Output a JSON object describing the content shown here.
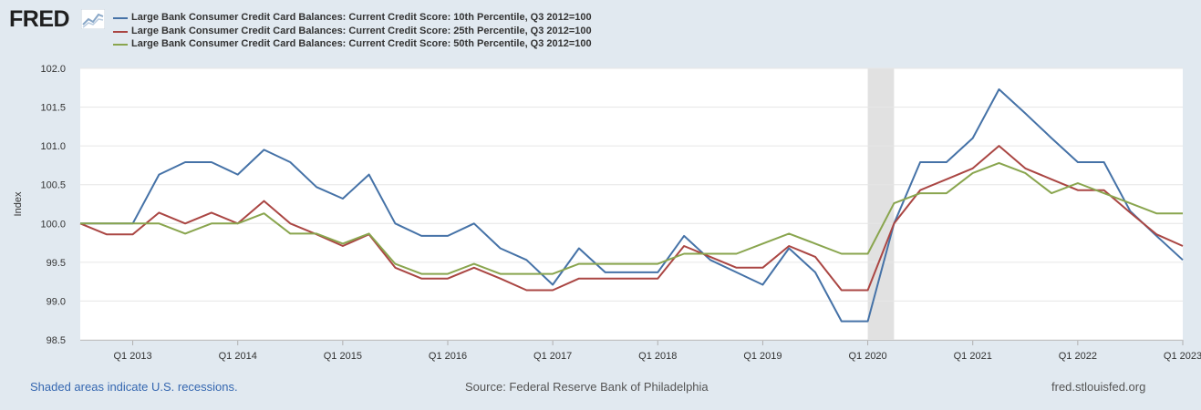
{
  "brand": {
    "logo_text": "FRED"
  },
  "legend_position": "top-left",
  "chart_data": {
    "type": "line",
    "x": [
      "2012-Q3",
      "2012-Q4",
      "2013-Q1",
      "2013-Q2",
      "2013-Q3",
      "2013-Q4",
      "2014-Q1",
      "2014-Q2",
      "2014-Q3",
      "2014-Q4",
      "2015-Q1",
      "2015-Q2",
      "2015-Q3",
      "2015-Q4",
      "2016-Q1",
      "2016-Q2",
      "2016-Q3",
      "2016-Q4",
      "2017-Q1",
      "2017-Q2",
      "2017-Q3",
      "2017-Q4",
      "2018-Q1",
      "2018-Q2",
      "2018-Q3",
      "2018-Q4",
      "2019-Q1",
      "2019-Q2",
      "2019-Q3",
      "2019-Q4",
      "2020-Q1",
      "2020-Q2",
      "2020-Q3",
      "2020-Q4",
      "2021-Q1",
      "2021-Q2",
      "2021-Q3",
      "2021-Q4",
      "2022-Q1",
      "2022-Q2",
      "2022-Q3",
      "2022-Q4",
      "2023-Q1"
    ],
    "series": [
      {
        "name": "Large Bank Consumer Credit Card Balances: Current Credit Score: 10th Percentile, Q3 2012=100",
        "color": "#4572a7",
        "values": [
          100.0,
          100.0,
          100.0,
          100.63,
          100.79,
          100.79,
          100.63,
          100.95,
          100.79,
          100.47,
          100.32,
          100.63,
          100.0,
          99.84,
          99.84,
          100.0,
          99.68,
          99.53,
          99.21,
          99.68,
          99.37,
          99.37,
          99.37,
          99.84,
          99.53,
          99.37,
          99.21,
          99.68,
          99.37,
          98.74,
          98.74,
          100.0,
          100.79,
          100.79,
          101.1,
          101.73,
          101.42,
          101.1,
          100.79,
          100.79,
          100.16,
          99.84,
          99.53
        ]
      },
      {
        "name": "Large Bank Consumer Credit Card Balances: Current Credit Score: 25th Percentile, Q3 2012=100",
        "color": "#aa4643",
        "values": [
          100.0,
          99.86,
          99.86,
          100.14,
          100.0,
          100.14,
          100.0,
          100.29,
          100.0,
          99.86,
          99.71,
          99.86,
          99.43,
          99.29,
          99.29,
          99.43,
          99.29,
          99.14,
          99.14,
          99.29,
          99.29,
          99.29,
          99.29,
          99.71,
          99.57,
          99.43,
          99.43,
          99.71,
          99.57,
          99.14,
          99.14,
          100.0,
          100.43,
          100.57,
          100.71,
          101.0,
          100.71,
          100.57,
          100.43,
          100.43,
          100.14,
          99.86,
          99.71
        ]
      },
      {
        "name": "Large Bank Consumer Credit Card Balances: Current Credit Score: 50th Percentile, Q3 2012=100",
        "color": "#89a54e",
        "values": [
          100.0,
          100.0,
          100.0,
          100.0,
          99.87,
          100.0,
          100.0,
          100.13,
          99.87,
          99.87,
          99.74,
          99.87,
          99.48,
          99.35,
          99.35,
          99.48,
          99.35,
          99.35,
          99.35,
          99.48,
          99.48,
          99.48,
          99.48,
          99.61,
          99.61,
          99.61,
          99.74,
          99.87,
          99.74,
          99.61,
          99.61,
          100.26,
          100.39,
          100.39,
          100.65,
          100.78,
          100.65,
          100.39,
          100.52,
          100.39,
          100.26,
          100.13,
          100.13
        ]
      }
    ],
    "xlabel": "",
    "ylabel": "Index",
    "ylim": [
      98.5,
      102.0
    ],
    "y_ticks": [
      "98.5",
      "99.0",
      "99.5",
      "100.0",
      "100.5",
      "101.0",
      "101.5",
      "102.0"
    ],
    "x_tick_labels": [
      {
        "x": "2013-Q1",
        "label": "Q1 2013"
      },
      {
        "x": "2014-Q1",
        "label": "Q1 2014"
      },
      {
        "x": "2015-Q1",
        "label": "Q1 2015"
      },
      {
        "x": "2016-Q1",
        "label": "Q1 2016"
      },
      {
        "x": "2017-Q1",
        "label": "Q1 2017"
      },
      {
        "x": "2018-Q1",
        "label": "Q1 2018"
      },
      {
        "x": "2019-Q1",
        "label": "Q1 2019"
      },
      {
        "x": "2020-Q1",
        "label": "Q1 2020"
      },
      {
        "x": "2021-Q1",
        "label": "Q1 2021"
      },
      {
        "x": "2022-Q1",
        "label": "Q1 2022"
      },
      {
        "x": "2023-Q1",
        "label": "Q1 2023"
      }
    ],
    "recessions": [
      {
        "start": "2020-Q1",
        "end": "2020-Q2"
      }
    ],
    "grid": true
  },
  "footer": {
    "recession_note": "Shaded areas indicate U.S. recessions.",
    "source": "Source: Federal Reserve Bank of Philadelphia",
    "site": "fred.stlouisfed.org"
  }
}
